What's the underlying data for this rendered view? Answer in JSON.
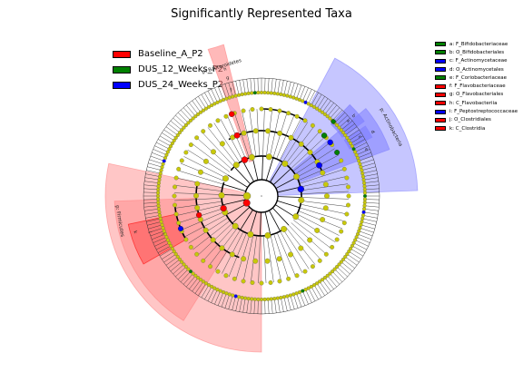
{
  "title": "Significantly Represented Taxa",
  "colors": {
    "red": "#ff0000",
    "green": "#008000",
    "blue": "#0000ff",
    "node_default": "#c8c80a",
    "red_shade": "#ff8080",
    "blue_shade": "#8080ff"
  },
  "legend": [
    {
      "label": "Baseline_A_P2",
      "color": "#ff0000"
    },
    {
      "label": "DUS_12_Weeks_P2",
      "color": "#008000"
    },
    {
      "label": "DUS_24_Weeks_P2",
      "color": "#0000ff"
    }
  ],
  "key": [
    {
      "label": "a: F_Bifidobacteriaceae",
      "color": "#008000"
    },
    {
      "label": "b: O_Bifidobacteriales",
      "color": "#008000"
    },
    {
      "label": "c: F_Actinomycetaceae",
      "color": "#0000ff"
    },
    {
      "label": "d: O_Actinomycetales",
      "color": "#0000ff"
    },
    {
      "label": "e: F_Coriobacteriaceae",
      "color": "#008000"
    },
    {
      "label": "f: F_Flavobacteriaceae",
      "color": "#ff0000"
    },
    {
      "label": "g: O_Flavobacteriales",
      "color": "#ff0000"
    },
    {
      "label": "h: C_Flavobacteriia",
      "color": "#ff0000"
    },
    {
      "label": "i: F_Peptostreptococcaceae",
      "color": "#0000ff"
    },
    {
      "label": "j: O_Clostridiales",
      "color": "#ff0000"
    },
    {
      "label": "k: C_Clostridia",
      "color": "#ff0000"
    }
  ],
  "sector_labels": {
    "actinobacteria": "p: Actinobacteria",
    "firmicutes": "p: Firmicutes",
    "bacteroidetes": "p: Bacteroidetes",
    "a": "a",
    "b": "b",
    "c": "c",
    "d": "d",
    "e": "e",
    "f": "f",
    "g": "g",
    "h": "h",
    "i": "i",
    "j": "j",
    "k": "k"
  }
}
